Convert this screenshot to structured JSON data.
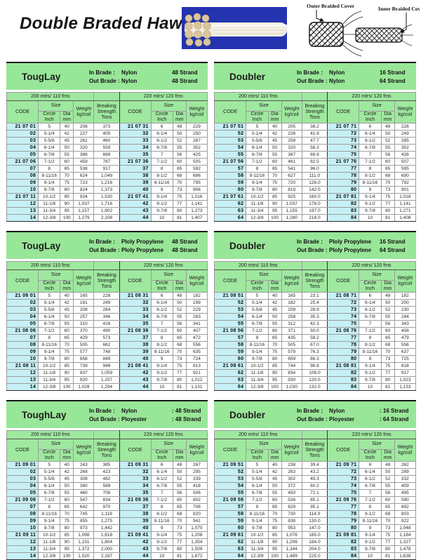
{
  "page": {
    "title": "Double Braded Hawser"
  },
  "diagram": {
    "outer_label": "Outer Braided Cover",
    "inner_label": "Inner Braided Cover"
  },
  "colors": {
    "band_green": "#98e698",
    "header_green": "#9fe89f",
    "code_cyan": "#c6f0f5",
    "photo_blue": "#2433b0"
  },
  "table_headers": {
    "left_span": "200 mtrs/ 110 fms",
    "right_span": "220 mtrs/ 120 fms",
    "code": "CODE",
    "size": "Size",
    "circle": [
      "Circle",
      "Inch"
    ],
    "dia": [
      "Dia",
      "mm"
    ],
    "weight": [
      "Weight",
      "kg/coil"
    ],
    "breaking": [
      "Breaking",
      "Strength",
      "Tons"
    ]
  },
  "blocks": [
    {
      "title": "TougLay",
      "in_line": [
        "In Brade :",
        "Nylon",
        "48 Strand"
      ],
      "out_line": [
        "Out Brade :",
        "Nylon",
        "48 Strand"
      ],
      "left_rows": [
        [
          "21 07 01",
          "5",
          "40",
          "208",
          "373"
        ],
        [
          "02",
          "5-1/4",
          "42",
          "227",
          "405"
        ],
        [
          "03",
          "5-5/8",
          "45",
          "261",
          "460"
        ],
        [
          "04",
          "6-1/4",
          "50",
          "320",
          "559"
        ],
        [
          "05",
          "6-7/8",
          "55",
          "386",
          "669"
        ],
        [
          "21 07 06",
          "7-1/2",
          "60",
          "459",
          "787"
        ],
        [
          "07",
          "8",
          "65",
          "538",
          "917"
        ],
        [
          "08",
          "8-11/16",
          "70",
          "624",
          "1,049"
        ],
        [
          "09",
          "9-1/4",
          "75",
          "723",
          "1,216"
        ],
        [
          "10",
          "9-7/8",
          "80",
          "824",
          "1,373"
        ],
        [
          "21 07 11",
          "10-1/2",
          "85",
          "924",
          "1,530"
        ],
        [
          "12",
          "11-1/8",
          "90",
          "1,037",
          "1,716"
        ],
        [
          "13",
          "11-3/4",
          "95",
          "1,157",
          "1,902"
        ],
        [
          "14",
          "12-3/8",
          "100",
          "1,279",
          "2,108"
        ]
      ],
      "right_rows": [
        [
          "21 07 31",
          "6",
          "48",
          "229"
        ],
        [
          "32",
          "6-1/4",
          "50",
          "250"
        ],
        [
          "33",
          "6-1/2",
          "52",
          "287"
        ],
        [
          "34",
          "6-7/8",
          "55",
          "352"
        ],
        [
          "35",
          "7",
          "56",
          "425"
        ],
        [
          "21 07 36",
          "7-1/2",
          "60",
          "505"
        ],
        [
          "37",
          "8",
          "65",
          "592"
        ],
        [
          "38",
          "8-1/2",
          "68",
          "686"
        ],
        [
          "39",
          "8-11/16",
          "70",
          "795"
        ],
        [
          "40",
          "9",
          "73",
          "906"
        ],
        [
          "21 07 41",
          "9-1/4",
          "75",
          "1,016"
        ],
        [
          "42",
          "9-1/2",
          "77",
          "1,141"
        ],
        [
          "43",
          "9-7/8",
          "80",
          "1,273"
        ],
        [
          "44",
          "10",
          "81",
          "1,407"
        ]
      ]
    },
    {
      "title": "Doubler",
      "in_line": [
        "In Brade :",
        "Nylon",
        "16 Strand"
      ],
      "out_line": [
        "Out Brade :",
        "Nylon",
        "64 Strand"
      ],
      "left_rows": [
        [
          "21 07 51",
          "5",
          "40",
          "205",
          "38.2"
        ],
        [
          "52",
          "5-1/4",
          "42",
          "226",
          "41.9"
        ],
        [
          "53",
          "5-5/8",
          "45",
          "259",
          "47.7"
        ],
        [
          "54",
          "6-1/4",
          "50",
          "320",
          "58.3"
        ],
        [
          "55",
          "6-7/8",
          "55",
          "387",
          "69.9"
        ],
        [
          "21 07 56",
          "7-1/2",
          "60",
          "461",
          "82.5"
        ],
        [
          "57",
          "8",
          "65",
          "541",
          "96.0"
        ],
        [
          "58",
          "8-11/16",
          "70",
          "627",
          "111.0"
        ],
        [
          "59",
          "9-1/4",
          "75",
          "720",
          "126.0"
        ],
        [
          "60",
          "9-7/8",
          "80",
          "819",
          "142.0"
        ],
        [
          "21 07 61",
          "10-1/2",
          "85",
          "925",
          "160.0"
        ],
        [
          "62",
          "11-1/8",
          "90",
          "1,037",
          "178.0"
        ],
        [
          "63",
          "11-3/4",
          "95",
          "1,155",
          "197.0"
        ],
        [
          "64",
          "12-3/8",
          "100",
          "1,280",
          "218.0"
        ]
      ],
      "right_rows": [
        [
          "21 07 71",
          "6",
          "48",
          "226"
        ],
        [
          "72",
          "6-1/4",
          "50",
          "249"
        ],
        [
          "73",
          "6-1/2",
          "52",
          "285"
        ],
        [
          "74",
          "6-7/8",
          "55",
          "352"
        ],
        [
          "75",
          "7",
          "56",
          "426"
        ],
        [
          "21 07 76",
          "7-1/2",
          "60",
          "507"
        ],
        [
          "77",
          "8",
          "65",
          "595"
        ],
        [
          "78",
          "8-1/2",
          "68",
          "690"
        ],
        [
          "79",
          "8-11/16",
          "70",
          "792"
        ],
        [
          "80",
          "9",
          "73",
          "901"
        ],
        [
          "21 07 81",
          "9-1/4",
          "75",
          "1,018"
        ],
        [
          "82",
          "9-1/2",
          "77",
          "1,141"
        ],
        [
          "83",
          "9-7/8",
          "80",
          "1,271"
        ],
        [
          "84",
          "10",
          "81",
          "1,408"
        ]
      ]
    },
    {
      "title": "TougLay",
      "in_line": [
        "In Brade :",
        "Ploly Propylene",
        "48 Strand"
      ],
      "out_line": [
        "Out Brade :",
        "Ploly Propylene",
        "48 Strand"
      ],
      "left_rows": [
        [
          "21 08 01",
          "5",
          "40",
          "165",
          "228"
        ],
        [
          "02",
          "5-1/4",
          "42",
          "181",
          "249"
        ],
        [
          "03",
          "5-5/8",
          "45",
          "208",
          "284"
        ],
        [
          "04",
          "6-1/4",
          "50",
          "257",
          "346"
        ],
        [
          "05",
          "6-7/8",
          "55",
          "310",
          "416"
        ],
        [
          "21 08 06",
          "7-1/2",
          "60",
          "370",
          "490"
        ],
        [
          "07",
          "8",
          "65",
          "429",
          "573"
        ],
        [
          "08",
          "8-11/16",
          "70",
          "505",
          "662"
        ],
        [
          "09",
          "9-1/4",
          "75",
          "577",
          "748"
        ],
        [
          "10",
          "9-7/8",
          "80",
          "658",
          "849"
        ],
        [
          "21 08 11",
          "10-1/2",
          "85",
          "739",
          "948"
        ],
        [
          "12",
          "11-1/8",
          "90",
          "837",
          "1,059"
        ],
        [
          "13",
          "11-3/4",
          "95",
          "920",
          "1,157"
        ],
        [
          "14",
          "12-3/8",
          "100",
          "1,028",
          "1,294"
        ]
      ],
      "right_rows": [
        [
          "21 08 31",
          "6",
          "48",
          "182"
        ],
        [
          "32",
          "6-1/4",
          "50",
          "199"
        ],
        [
          "33",
          "6-1/2",
          "52",
          "229"
        ],
        [
          "34",
          "6-7/8",
          "55",
          "283"
        ],
        [
          "35",
          "7",
          "56",
          "341"
        ],
        [
          "21 08 36",
          "7-1/2",
          "60",
          "407"
        ],
        [
          "37",
          "8",
          "65",
          "472"
        ],
        [
          "38",
          "8-1/2",
          "68",
          "556"
        ],
        [
          "39",
          "8-11/16",
          "70",
          "635"
        ],
        [
          "40",
          "9",
          "73",
          "724"
        ],
        [
          "21 08 41",
          "9-1/4",
          "75",
          "813"
        ],
        [
          "42",
          "9-1/2",
          "77",
          "921"
        ],
        [
          "43",
          "9-7/8",
          "80",
          "1,012"
        ],
        [
          "44",
          "10",
          "81",
          "1,131"
        ]
      ]
    },
    {
      "title": "Doubler",
      "in_line": [
        "In Brade :",
        "Ploly Propylene",
        "16 Strand"
      ],
      "out_line": [
        "Out Brade :",
        "Ploly Propylene",
        "64 Strand"
      ],
      "left_rows": [
        [
          "21 08 51",
          "5",
          "40",
          "165",
          "23.1"
        ],
        [
          "52",
          "5-1/4",
          "42",
          "182",
          "25.4"
        ],
        [
          "53",
          "5-5/8",
          "45",
          "209",
          "28.9"
        ],
        [
          "54",
          "6-1/4",
          "50",
          "258",
          "35.3"
        ],
        [
          "55",
          "6-7/8",
          "55",
          "312",
          "42.3"
        ],
        [
          "21 08 56",
          "7-1/2",
          "60",
          "371",
          "50.0"
        ],
        [
          "57",
          "8",
          "65",
          "435",
          "58.2"
        ],
        [
          "58",
          "8-11/16",
          "70",
          "505",
          "67.0"
        ],
        [
          "59",
          "9-1/4",
          "75",
          "579",
          "76.3"
        ],
        [
          "60",
          "9-7/8",
          "80",
          "659",
          "86.3"
        ],
        [
          "21 08 61",
          "10-1/2",
          "85",
          "744",
          "96.8"
        ],
        [
          "62",
          "11-1/8",
          "90",
          "834",
          "108.0"
        ],
        [
          "63",
          "11-3/4",
          "95",
          "930",
          "120.0"
        ],
        [
          "64",
          "12-3/8",
          "100",
          "1,030",
          "132.0"
        ]
      ],
      "right_rows": [
        [
          "21 08 71",
          "6",
          "48",
          "182"
        ],
        [
          "72",
          "6-1/4",
          "50",
          "200"
        ],
        [
          "73",
          "6-1/2",
          "52",
          "230"
        ],
        [
          "74",
          "6-7/8",
          "55",
          "284"
        ],
        [
          "75",
          "7",
          "56",
          "343"
        ],
        [
          "21 08 76",
          "7-1/2",
          "60",
          "408"
        ],
        [
          "77",
          "8",
          "65",
          "479"
        ],
        [
          "78",
          "8-1/2",
          "68",
          "556"
        ],
        [
          "79",
          "8-11/16",
          "70",
          "637"
        ],
        [
          "80",
          "9",
          "73",
          "725"
        ],
        [
          "21 08 81",
          "9-1/4",
          "75",
          "818"
        ],
        [
          "82",
          "9-1/2",
          "77",
          "917"
        ],
        [
          "83",
          "9-7/8",
          "80",
          "1,023"
        ],
        [
          "84",
          "10",
          "81",
          "1,133"
        ]
      ]
    },
    {
      "title": "ToughLay",
      "in_line": [
        "In Brade :",
        "Nylon",
        ": 48 Strand"
      ],
      "out_line": [
        "Out Brade :",
        "Ployester",
        ": 48 Strand"
      ],
      "left_rows": [
        [
          "21 09 01",
          "5",
          "40",
          "243",
          "385"
        ],
        [
          "02",
          "5-1/4",
          "42",
          "268",
          "423"
        ],
        [
          "03",
          "5-5/8",
          "45",
          "308",
          "482"
        ],
        [
          "04",
          "6-1/4",
          "50",
          "380",
          "589"
        ],
        [
          "05",
          "6-7/8",
          "55",
          "460",
          "706"
        ],
        [
          "21 09 06",
          "7-1/2",
          "60",
          "547",
          "834"
        ],
        [
          "07",
          "8",
          "65",
          "642",
          "970"
        ],
        [
          "08",
          "8-11/16",
          "70",
          "745",
          "1,118"
        ],
        [
          "09",
          "9-1/4",
          "75",
          "855",
          "1,275"
        ],
        [
          "10",
          "9-7/8",
          "80",
          "973",
          "1,442"
        ],
        [
          "21 09 11",
          "10-1/2",
          "85",
          "1,098",
          "1,618"
        ],
        [
          "12",
          "11-1/8",
          "90",
          "1,231",
          "1,804"
        ],
        [
          "13",
          "11-3/4",
          "95",
          "1,372",
          "2,000"
        ],
        [
          "14",
          "12-3/8",
          "100",
          "1,520",
          "2,167"
        ]
      ],
      "right_rows": [
        [
          "21 09 31",
          "6",
          "48",
          "267"
        ],
        [
          "32",
          "6-1/4",
          "50",
          "295"
        ],
        [
          "33",
          "6-1/2",
          "52",
          "339"
        ],
        [
          "34",
          "6-7/8",
          "55",
          "418"
        ],
        [
          "35",
          "7",
          "56",
          "506"
        ],
        [
          "21 09 36",
          "7-1/2",
          "60",
          "602"
        ],
        [
          "37",
          "8",
          "65",
          "706"
        ],
        [
          "38",
          "8-1/2",
          "68",
          "820"
        ],
        [
          "39",
          "8-11/16",
          "70",
          "941"
        ],
        [
          "40",
          "9",
          "73",
          "1,070"
        ],
        [
          "21 09 41",
          "9-1/4",
          "75",
          "1,208"
        ],
        [
          "42",
          "9-1/2",
          "77",
          "1,354"
        ],
        [
          "43",
          "9-7/8",
          "80",
          "1,509"
        ],
        [
          "44",
          "10",
          "81",
          "1,672"
        ]
      ]
    },
    {
      "title": "Doubler",
      "in_line": [
        "In Brade :",
        "Nylon",
        ": 16 Strand"
      ],
      "out_line": [
        "Out Brade :",
        "Ployester",
        ": 64 Strand"
      ],
      "left_rows": [
        [
          "21 09 51",
          "5",
          "40",
          "238",
          "39.4"
        ],
        [
          "52",
          "5-1/4",
          "42",
          "263",
          "43.2"
        ],
        [
          "53",
          "5-5/8",
          "45",
          "302",
          "49.3"
        ],
        [
          "54",
          "6-1/4",
          "50",
          "372",
          "60.2"
        ],
        [
          "55",
          "6-7/8",
          "55",
          "450",
          "72.1"
        ],
        [
          "21 09 56",
          "7-1/2",
          "60",
          "536",
          "85.1"
        ],
        [
          "57",
          "8",
          "65",
          "629",
          "95.1"
        ],
        [
          "58",
          "8-11/16",
          "70",
          "730",
          "114.0"
        ],
        [
          "59",
          "9-1/4",
          "75",
          "838",
          "130.0"
        ],
        [
          "60",
          "9-7/8",
          "80",
          "953",
          "147.0"
        ],
        [
          "21 09 61",
          "10-1/2",
          "85",
          "1,076",
          "165.0"
        ],
        [
          "62",
          "11-1/8",
          "90",
          "1,206",
          "184.0"
        ],
        [
          "63",
          "11-3/4",
          "95",
          "1,344",
          "204.0"
        ],
        [
          "64",
          "12-3/8",
          "100",
          "1,489",
          "225.0"
        ]
      ],
      "right_rows": [
        [
          "21 09 71",
          "6",
          "48",
          "262"
        ],
        [
          "72",
          "6-1/4",
          "50",
          "289"
        ],
        [
          "73",
          "6-1/2",
          "52",
          "332"
        ],
        [
          "74",
          "6-7/8",
          "55",
          "409"
        ],
        [
          "75",
          "7",
          "56",
          "495"
        ],
        [
          "21 09 76",
          "7-1/2",
          "60",
          "590"
        ],
        [
          "77",
          "8",
          "65",
          "692"
        ],
        [
          "78",
          "8-1/2",
          "68",
          "803"
        ],
        [
          "79",
          "8-11/16",
          "70",
          "922"
        ],
        [
          "80",
          "9",
          "73",
          "1,048"
        ],
        [
          "21 09 81",
          "9-1/4",
          "75",
          "1,184"
        ],
        [
          "82",
          "9-1/2",
          "77",
          "1,327"
        ],
        [
          "83",
          "9-7/8",
          "80",
          "1,478"
        ],
        [
          "84",
          "10",
          "81",
          "1,638"
        ]
      ]
    }
  ]
}
